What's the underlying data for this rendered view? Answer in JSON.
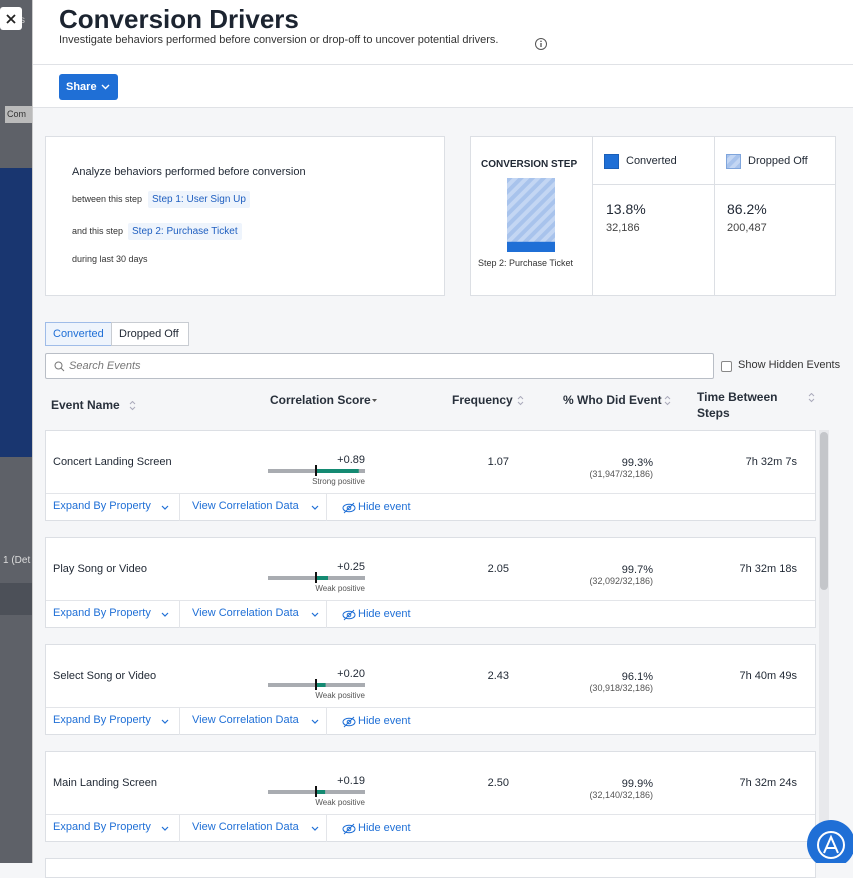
{
  "background": {
    "fragments": [
      "s",
      "Com",
      "1 (Det"
    ]
  },
  "header": {
    "title": "Conversion Drivers",
    "subtitle": "Investigate behaviors performed before conversion or drop-off to uncover potential drivers."
  },
  "toolbar": {
    "share": "Share"
  },
  "summary": {
    "intro": "Analyze behaviors performed before conversion",
    "between_label": "between this step",
    "from_step": "Step 1: User Sign Up",
    "and_label": "and this step",
    "to_step": "Step 2: Purchase Ticket",
    "period": "during last 30 days"
  },
  "conversion": {
    "heading": "CONVERSION STEP",
    "step": "Step 2: Purchase Ticket",
    "converted": {
      "label": "Converted",
      "percent": "13.8%",
      "count": "32,186"
    },
    "dropped": {
      "label": "Dropped Off",
      "percent": "86.2%",
      "count": "200,487"
    }
  },
  "tabs": [
    "Converted",
    "Dropped Off"
  ],
  "search": {
    "placeholder": "Search Events",
    "hidden_toggle": "Show Hidden Events"
  },
  "columns": [
    "Event Name",
    "Correlation Score",
    "Frequency",
    "% Who Did Event",
    "Time Between Steps"
  ],
  "row_actions": {
    "expand": "Expand By Property",
    "view": "View Correlation Data",
    "hide": "Hide event"
  },
  "rows": [
    {
      "event": "Concert Landing Screen",
      "score": "+0.89",
      "strength": "Strong positive",
      "frequency": "1.07",
      "percent": "99.3%",
      "ratio": "(31,947/32,186)",
      "time": "7h 32m 7s"
    },
    {
      "event": "Play Song or Video",
      "score": "+0.25",
      "strength": "Weak positive",
      "frequency": "2.05",
      "percent": "99.7%",
      "ratio": "(32,092/32,186)",
      "time": "7h 32m 18s"
    },
    {
      "event": "Select Song or Video",
      "score": "+0.20",
      "strength": "Weak positive",
      "frequency": "2.43",
      "percent": "96.1%",
      "ratio": "(30,918/32,186)",
      "time": "7h 40m 49s"
    },
    {
      "event": "Main Landing Screen",
      "score": "+0.19",
      "strength": "Weak positive",
      "frequency": "2.50",
      "percent": "99.9%",
      "ratio": "(32,140/32,186)",
      "time": "7h 32m 24s"
    }
  ]
}
